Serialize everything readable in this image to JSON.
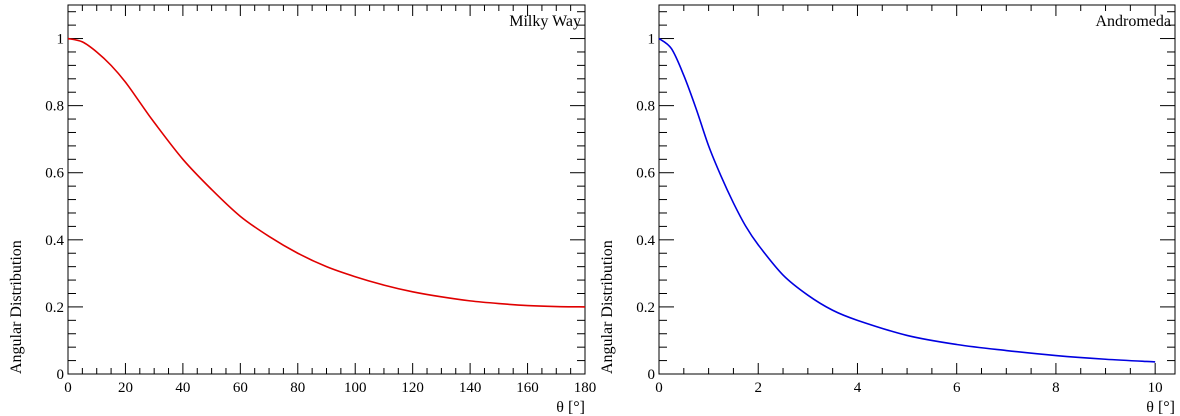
{
  "chart_data": [
    {
      "type": "line",
      "title": "Milky Way",
      "xlabel": "θ [°]",
      "ylabel": "Angular Distribution",
      "xlim": [
        0,
        180
      ],
      "ylim": [
        0,
        1.1
      ],
      "x_ticks": [
        0,
        20,
        40,
        60,
        80,
        100,
        120,
        140,
        160,
        180
      ],
      "y_ticks": [
        0,
        0.2,
        0.4,
        0.6,
        0.8,
        1
      ],
      "y_tick_labels": [
        "0",
        "0.2",
        "0.4",
        "0.6",
        "0.8",
        "1"
      ],
      "grid": false,
      "series": [
        {
          "color": "#e00000",
          "x": [
            0,
            5,
            10,
            15,
            20,
            25,
            30,
            40,
            50,
            60,
            70,
            80,
            90,
            100,
            110,
            120,
            130,
            140,
            150,
            160,
            170,
            180
          ],
          "y": [
            1.0,
            0.99,
            0.96,
            0.92,
            0.87,
            0.81,
            0.75,
            0.64,
            0.55,
            0.47,
            0.41,
            0.36,
            0.32,
            0.29,
            0.265,
            0.245,
            0.23,
            0.218,
            0.21,
            0.204,
            0.201,
            0.2
          ]
        }
      ]
    },
    {
      "type": "line",
      "title": "Andromeda",
      "xlabel": "θ [°]",
      "ylabel": "Angular Distribution",
      "xlim": [
        0,
        10.4
      ],
      "ylim": [
        0,
        1.1
      ],
      "x_ticks": [
        0,
        2,
        4,
        6,
        8,
        10
      ],
      "y_ticks": [
        0,
        0.2,
        0.4,
        0.6,
        0.8,
        1
      ],
      "y_tick_labels": [
        "0",
        "0.2",
        "0.4",
        "0.6",
        "0.8",
        "1"
      ],
      "grid": false,
      "series": [
        {
          "color": "#0000e0",
          "x": [
            0,
            0.25,
            0.5,
            0.75,
            1.0,
            1.25,
            1.5,
            1.75,
            2.0,
            2.5,
            3.0,
            3.5,
            4.0,
            5.0,
            6.0,
            7.0,
            8.0,
            9.0,
            10.0
          ],
          "y": [
            1.0,
            0.97,
            0.89,
            0.79,
            0.68,
            0.59,
            0.51,
            0.44,
            0.385,
            0.295,
            0.235,
            0.19,
            0.16,
            0.115,
            0.088,
            0.07,
            0.055,
            0.044,
            0.036
          ]
        }
      ]
    }
  ]
}
